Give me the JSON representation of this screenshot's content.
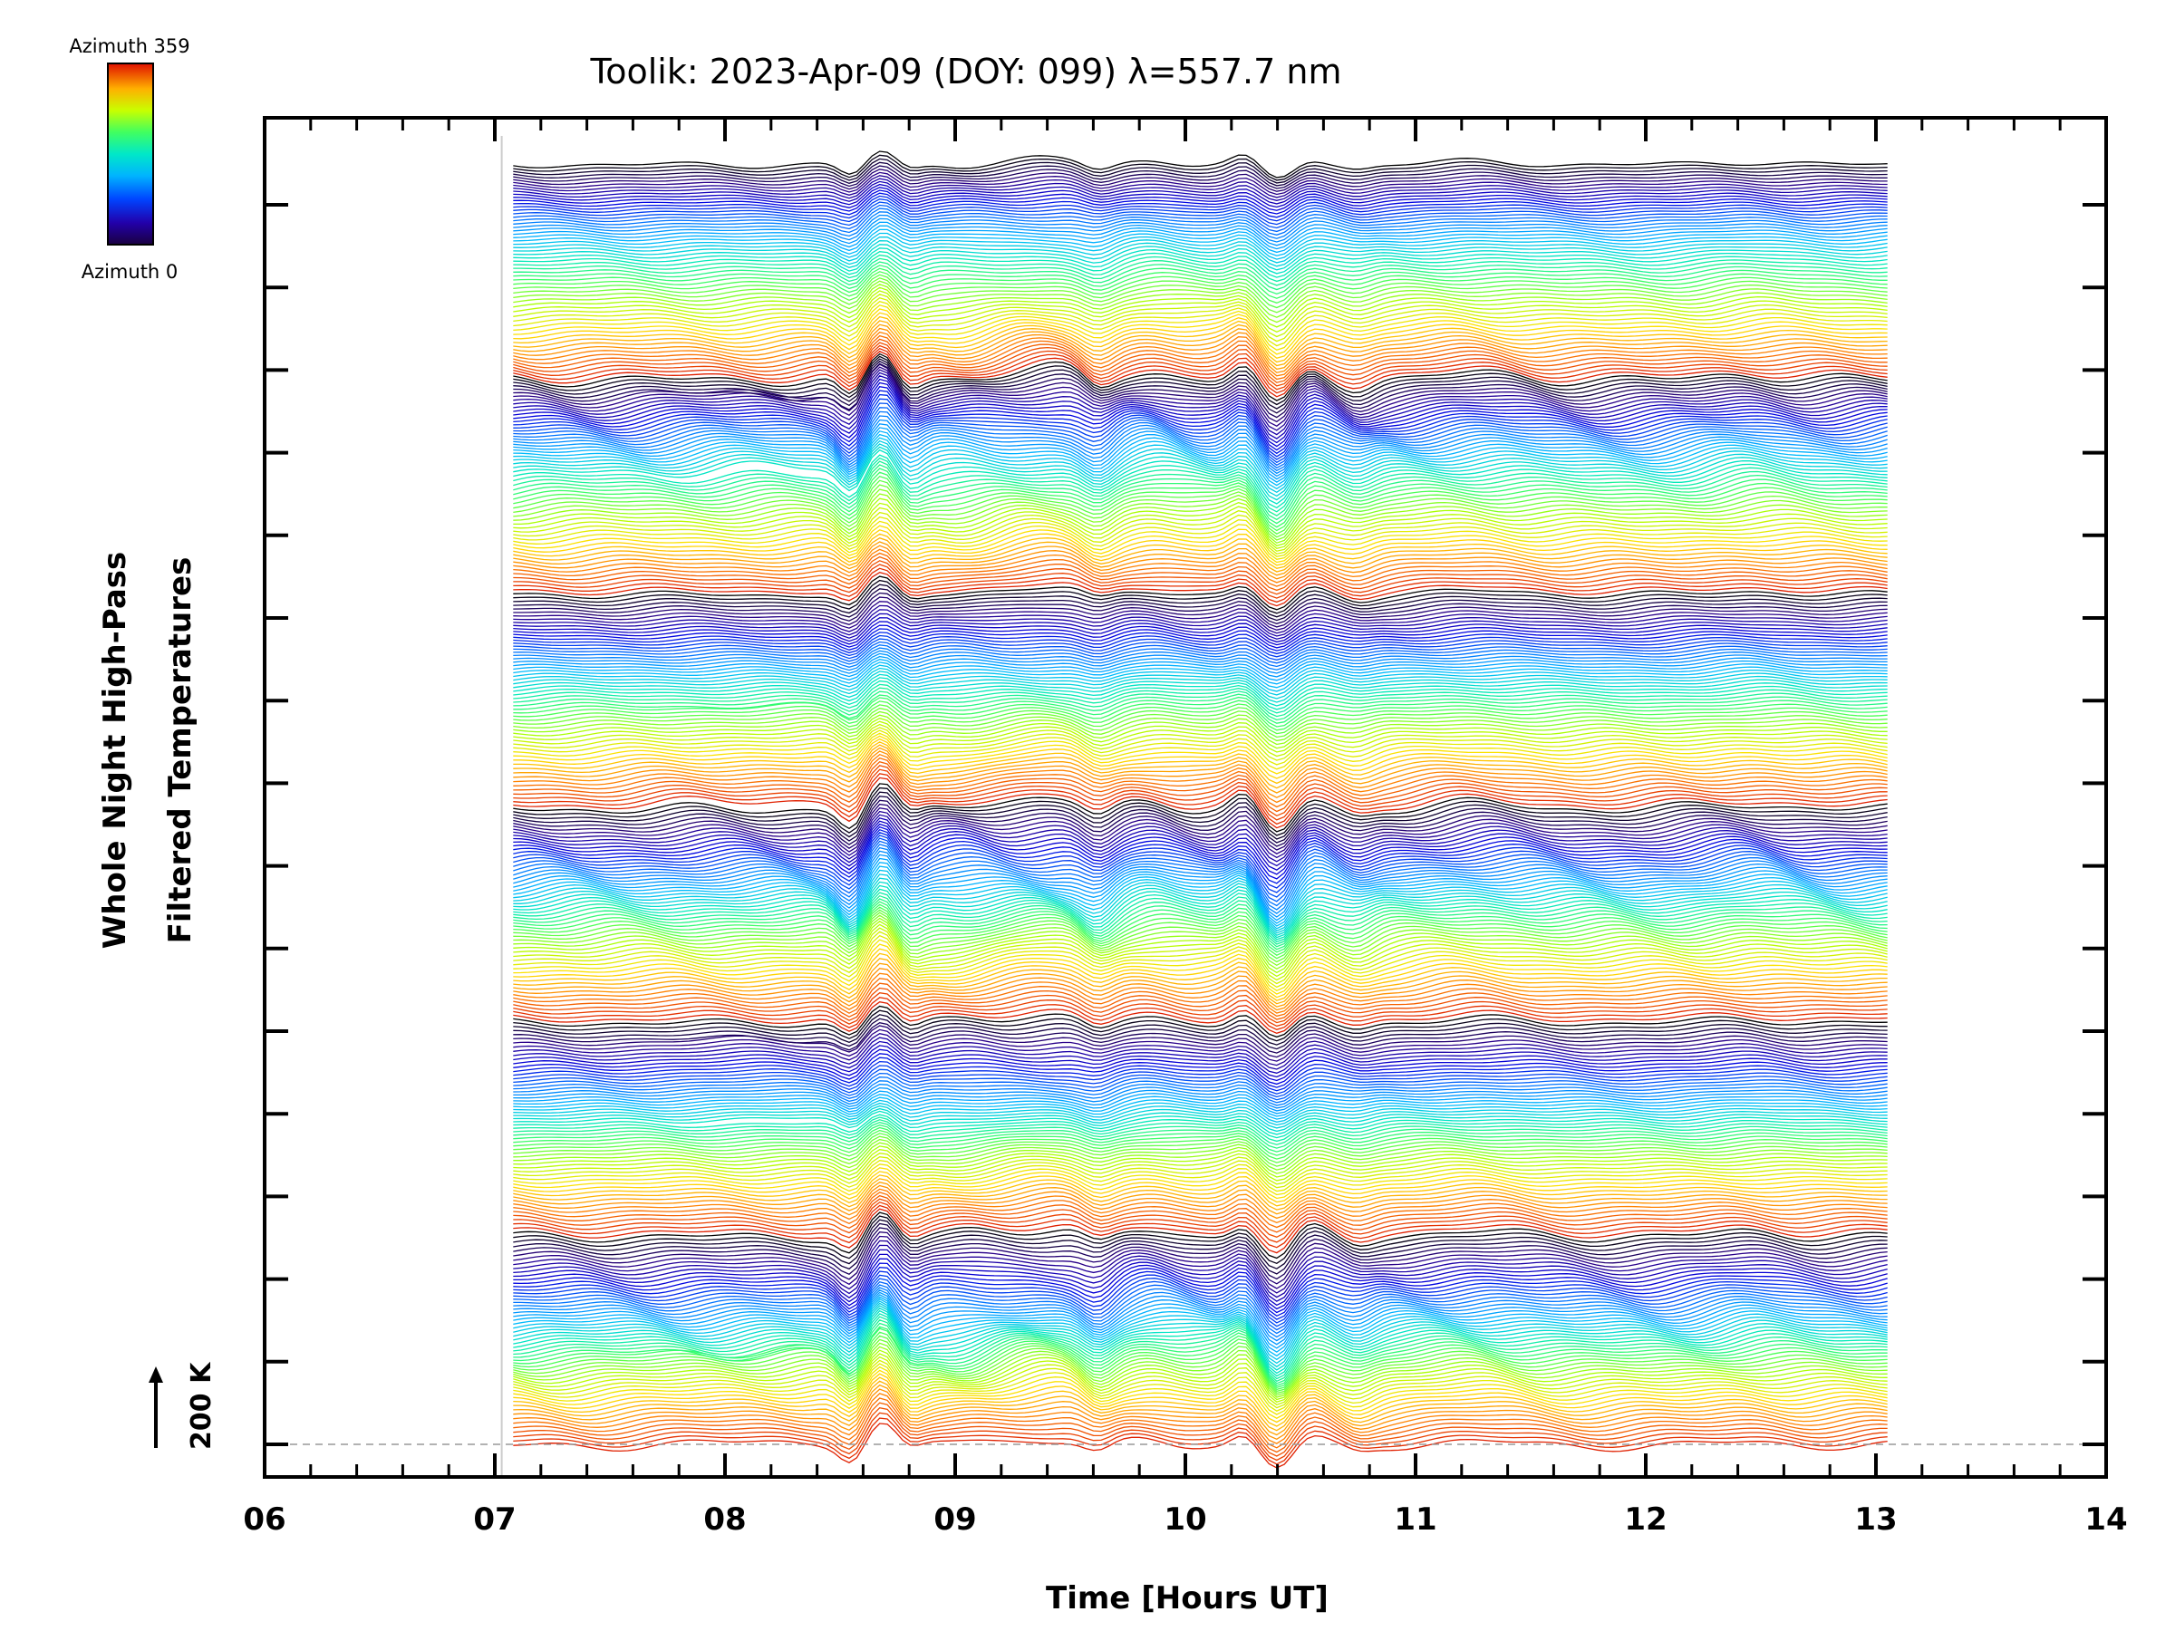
{
  "chart_data": {
    "type": "line",
    "title": "Toolik: 2023-Apr-09 (DOY: 099) λ=557.7 nm",
    "xlabel": "Time [Hours UT]",
    "ylabel_line1": "Whole Night High-Pass",
    "ylabel_line2": "Filtered Temperatures",
    "x_tick_labels": [
      "06",
      "07",
      "08",
      "09",
      "10",
      "11",
      "12",
      "13",
      "14"
    ],
    "xlim": [
      6,
      14
    ],
    "data_time_range": [
      7.08,
      13.05
    ],
    "scale_bar_label": "200 K",
    "grid": false,
    "legend": {
      "type": "colorbar",
      "placement": "top-left",
      "top_label": "Azimuth 359",
      "bottom_label": "Azimuth 0",
      "range": [
        0,
        359
      ]
    },
    "colormap": [
      "#000000",
      "#2a0088",
      "#0000e0",
      "#0070ff",
      "#00b8ff",
      "#00e8c0",
      "#40ff60",
      "#b0ff00",
      "#ffe000",
      "#ff8000",
      "#e02000"
    ],
    "series_count": 360,
    "series_description_azimuth": "one trace per azimuth 0-359, stacked upward by azimuth"
  }
}
